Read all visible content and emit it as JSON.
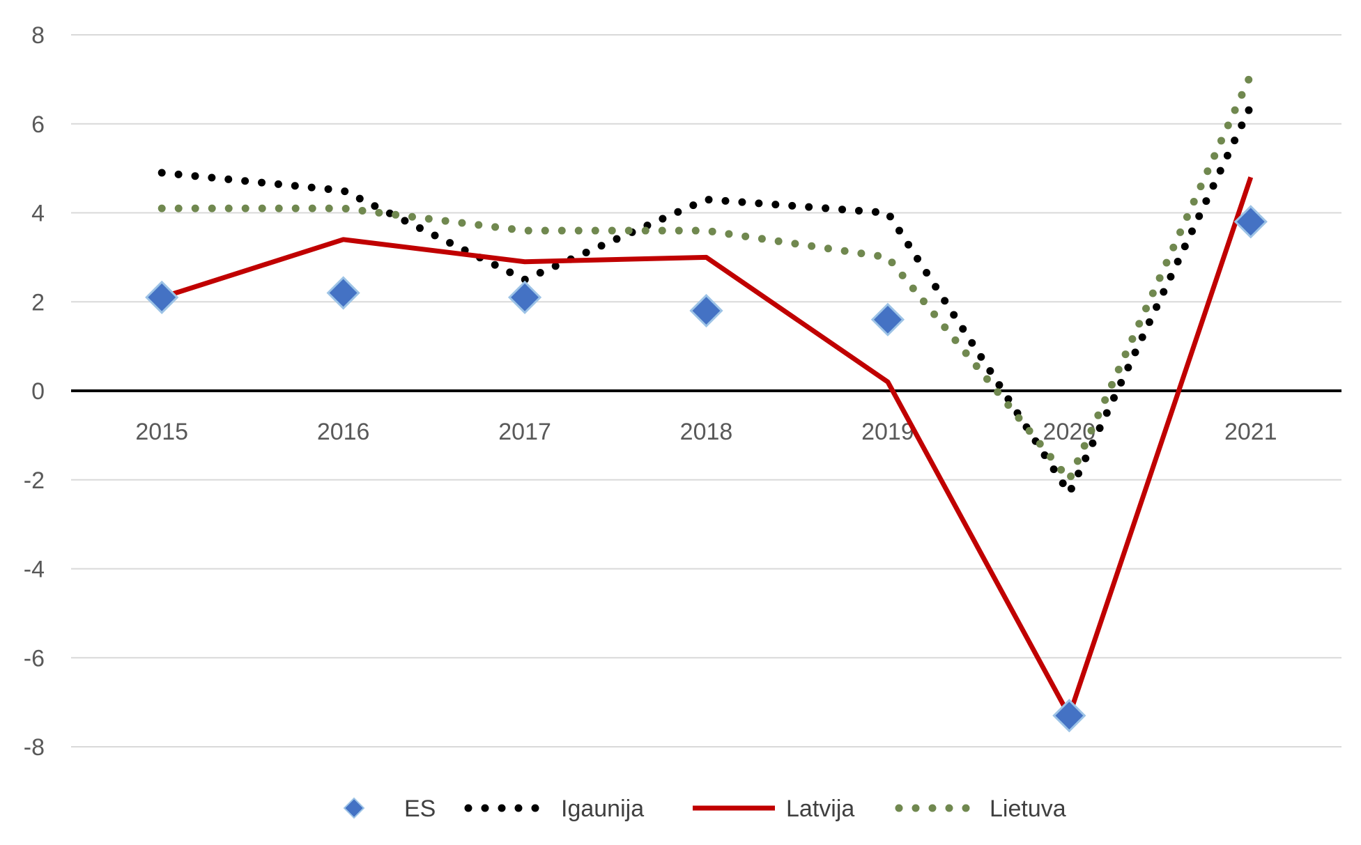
{
  "chart_data": {
    "type": "line",
    "title": "",
    "xlabel": "",
    "ylabel": "",
    "categories": [
      "2015",
      "2016",
      "2017",
      "2018",
      "2019",
      "2020",
      "2021"
    ],
    "ylim": [
      -8,
      8
    ],
    "yticks": [
      "8",
      "6",
      "4",
      "2",
      "0",
      "-2",
      "-4",
      "-6",
      "-8"
    ],
    "grid": true,
    "legend_position": "bottom",
    "series": [
      {
        "name": "ES",
        "style": "markers",
        "marker": "diamond",
        "color": "#4472C4",
        "values": [
          2.1,
          2.2,
          2.1,
          1.8,
          1.6,
          -7.3,
          3.8
        ]
      },
      {
        "name": "Igaunija",
        "style": "dotted",
        "color": "#000000",
        "values": [
          4.9,
          4.5,
          2.5,
          4.3,
          4.0,
          -2.3,
          6.4
        ]
      },
      {
        "name": "Latvija",
        "style": "solid",
        "color": "#C00000",
        "values": [
          2.1,
          3.4,
          2.9,
          3.0,
          0.2,
          -7.3,
          4.8
        ]
      },
      {
        "name": "Lietuva",
        "style": "dotted",
        "color": "#70884F",
        "values": [
          4.1,
          4.1,
          3.6,
          3.6,
          3.0,
          -2.0,
          7.1
        ]
      }
    ]
  }
}
